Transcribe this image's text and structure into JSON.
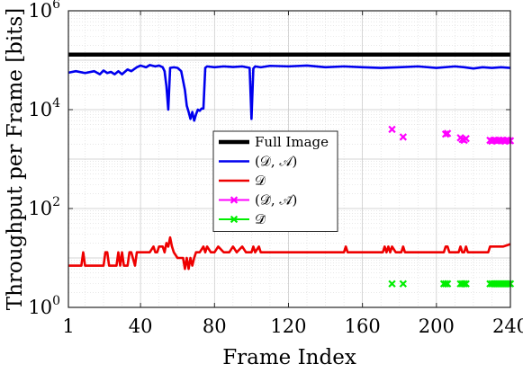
{
  "chart_data": {
    "type": "line",
    "title": "",
    "xlabel": "Frame Index",
    "ylabel": "Throughput per Frame [bits]",
    "xlim": [
      1,
      240
    ],
    "ylim": [
      1,
      1000000
    ],
    "yscale": "log",
    "grid": true,
    "xticks": [
      1,
      40,
      80,
      120,
      160,
      200,
      240
    ],
    "xtick_labels": [
      "1",
      "40",
      "80",
      "120",
      "160",
      "200",
      "240"
    ],
    "yticks": [
      1,
      100,
      10000,
      1000000
    ],
    "ytick_labels": [
      {
        "base": "10",
        "exp": "0"
      },
      {
        "base": "10",
        "exp": "2"
      },
      {
        "base": "10",
        "exp": "4"
      },
      {
        "base": "10",
        "exp": "6"
      }
    ],
    "legend_position": "center-right",
    "series": [
      {
        "name": "Full Image",
        "color": "#000000",
        "style": "line",
        "width": 4.5,
        "x": [
          1,
          240
        ],
        "y": [
          130000,
          130000
        ]
      },
      {
        "name": "(𝒟, 𝒜)",
        "color": "#0000ee",
        "style": "line",
        "width": 2.6,
        "x": [
          1,
          5,
          10,
          15,
          18,
          20,
          22,
          24,
          26,
          28,
          30,
          33,
          35,
          38,
          40,
          43,
          45,
          48,
          50,
          52,
          53,
          54,
          55,
          56,
          58,
          60,
          62,
          64,
          65,
          66,
          67,
          68,
          69,
          70,
          71,
          72,
          73,
          74,
          75,
          76,
          80,
          85,
          90,
          95,
          99,
          100,
          101,
          102,
          105,
          110,
          120,
          130,
          140,
          150,
          160,
          170,
          180,
          190,
          200,
          210,
          215,
          220,
          225,
          230,
          235,
          240
        ],
        "y": [
          56000,
          60000,
          55000,
          60000,
          52000,
          62000,
          55000,
          58000,
          52000,
          60000,
          52000,
          65000,
          60000,
          72000,
          78000,
          72000,
          80000,
          75000,
          78000,
          72000,
          60000,
          30000,
          10000,
          70000,
          72000,
          70000,
          60000,
          25000,
          12000,
          9000,
          6500,
          9000,
          6000,
          8000,
          10000,
          9500,
          10500,
          10500,
          70000,
          75000,
          72000,
          75000,
          73000,
          75000,
          70000,
          6500,
          68000,
          75000,
          72000,
          77000,
          75000,
          78000,
          72000,
          75000,
          72000,
          70000,
          72000,
          75000,
          70000,
          75000,
          72000,
          68000,
          72000,
          70000,
          72000,
          70000
        ]
      },
      {
        "name": "𝒟",
        "color": "#ee0000",
        "style": "line",
        "width": 2.6,
        "x": [
          1,
          8,
          9,
          10,
          11,
          20,
          21,
          22,
          23,
          27,
          28,
          29,
          30,
          31,
          33,
          34,
          35,
          37,
          38,
          40,
          45,
          47,
          48,
          49,
          50,
          52,
          53,
          54,
          55,
          56,
          57,
          58,
          60,
          63,
          64,
          65,
          66,
          67,
          68,
          69,
          70,
          72,
          74,
          75,
          76,
          78,
          80,
          82,
          85,
          88,
          90,
          92,
          95,
          97,
          100,
          101,
          102,
          104,
          105,
          110,
          150,
          151,
          152,
          153,
          155,
          170,
          171,
          172,
          173,
          174,
          175,
          176,
          178,
          181,
          182,
          183,
          204,
          205,
          206,
          207,
          212,
          213,
          214,
          215,
          216,
          217,
          228,
          229,
          230,
          231,
          232,
          236,
          240
        ],
        "y": [
          7,
          7,
          13,
          7,
          7,
          7,
          13,
          13,
          7,
          7,
          13,
          7,
          13,
          7,
          7,
          13,
          13,
          7,
          13,
          13,
          13,
          17,
          13,
          13,
          17,
          17,
          13,
          20,
          17,
          26,
          17,
          13,
          10,
          10,
          6,
          10,
          6,
          10,
          7,
          10,
          13,
          13,
          17,
          13,
          17,
          13,
          13,
          17,
          13,
          13,
          17,
          13,
          17,
          13,
          13,
          17,
          13,
          17,
          13,
          13,
          13,
          17,
          13,
          13,
          13,
          13,
          13,
          17,
          13,
          17,
          13,
          17,
          13,
          13,
          17,
          13,
          13,
          17,
          17,
          13,
          13,
          17,
          13,
          13,
          17,
          13,
          13,
          17,
          17,
          17,
          17,
          17,
          19
        ]
      },
      {
        "name": "(𝒟̃, 𝒜̃)",
        "color": "#ff00ff",
        "style": "marker",
        "width": 2,
        "x": [
          176,
          182,
          205,
          206,
          213,
          214,
          215,
          216,
          229,
          230,
          231,
          232,
          233,
          234,
          235,
          236,
          237,
          238,
          239,
          240
        ],
        "y": [
          4000,
          2800,
          3200,
          3300,
          2700,
          2500,
          2400,
          2600,
          2400,
          2300,
          2400,
          2400,
          2350,
          2400,
          2350,
          2400,
          2300,
          2400,
          2350,
          2350
        ]
      },
      {
        "name": "𝒟̃",
        "color": "#00ee00",
        "style": "marker",
        "width": 2,
        "x": [
          176,
          182,
          204,
          205,
          206,
          213,
          214,
          215,
          216,
          229,
          230,
          231,
          232,
          233,
          234,
          235,
          236,
          237,
          238,
          239,
          240
        ],
        "y": [
          3,
          3,
          3,
          3,
          3,
          3,
          3,
          3,
          3,
          3,
          3,
          3,
          3,
          3,
          3,
          3,
          3,
          3,
          3,
          3,
          3
        ]
      }
    ]
  }
}
